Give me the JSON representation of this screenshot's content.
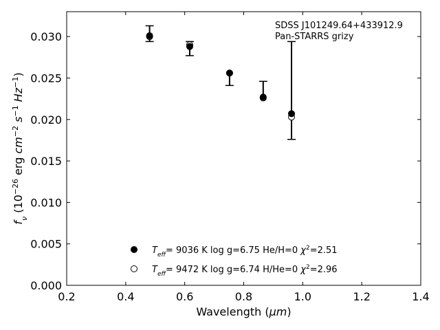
{
  "chart_data": {
    "type": "scatter",
    "annotation": {
      "lines": [
        "SDSS J101249.64+433912.9",
        "Pan-STARRS grizy"
      ],
      "position": "top-right"
    },
    "xlabel": {
      "main": "Wavelength (",
      "unit": "μm",
      "close": ")"
    },
    "ylabel": {
      "f": "f",
      "nu": "ν",
      "open": " (10",
      "exp1": "−26",
      "mid1": " erg ",
      "cm": "cm",
      "exp2": "−2",
      "s": " s",
      "exp3": "−1",
      "hz": " Hz",
      "exp4": "−1",
      "close": ")"
    },
    "xlim": [
      0.2,
      1.4
    ],
    "ylim": [
      0.0,
      0.033
    ],
    "xticks": [
      0.2,
      0.4,
      0.6,
      0.8,
      1.0,
      1.2,
      1.4
    ],
    "xtick_labels": [
      "0.2",
      "0.4",
      "0.6",
      "0.8",
      "1.0",
      "1.2",
      "1.4"
    ],
    "yticks": [
      0.0,
      0.005,
      0.01,
      0.015,
      0.02,
      0.025,
      0.03
    ],
    "ytick_labels": [
      "0.000",
      "0.005",
      "0.010",
      "0.015",
      "0.020",
      "0.025",
      "0.030"
    ],
    "grid": false,
    "legend_position": "bottom-center",
    "observed": {
      "x": [
        0.481,
        0.617,
        0.752,
        0.866,
        0.962
      ],
      "y": [
        0.0301,
        0.0286,
        0.0256,
        0.0227,
        0.0207
      ],
      "yerr_low": [
        0.0007,
        0.0009,
        0.0015,
        0.0,
        0.0031
      ],
      "yerr_high": [
        0.0012,
        0.0008,
        0.0,
        0.0019,
        0.0087
      ]
    },
    "series": [
      {
        "marker": "filled",
        "color": "#000000",
        "x": [
          0.481,
          0.617,
          0.752,
          0.866,
          0.962
        ],
        "y": [
          0.0301,
          0.0288,
          0.0256,
          0.0227,
          0.0207
        ],
        "label": {
          "t": "T",
          "eff": "eff",
          "rest": "=  9036 K  log g=6.75  He/H=0  ",
          "chi": "χ",
          "sq": "2",
          "val": "=2.51"
        }
      },
      {
        "marker": "open",
        "color": "#000000",
        "x": [
          0.481,
          0.617,
          0.752,
          0.866,
          0.962
        ],
        "y": [
          0.03,
          0.029,
          0.0256,
          0.0226,
          0.0203
        ],
        "label": {
          "t": "T",
          "eff": "eff",
          "rest": "=  9472 K  log g=6.74  H/He=0  ",
          "chi": "χ",
          "sq": "2",
          "val": "=2.96"
        }
      }
    ]
  }
}
